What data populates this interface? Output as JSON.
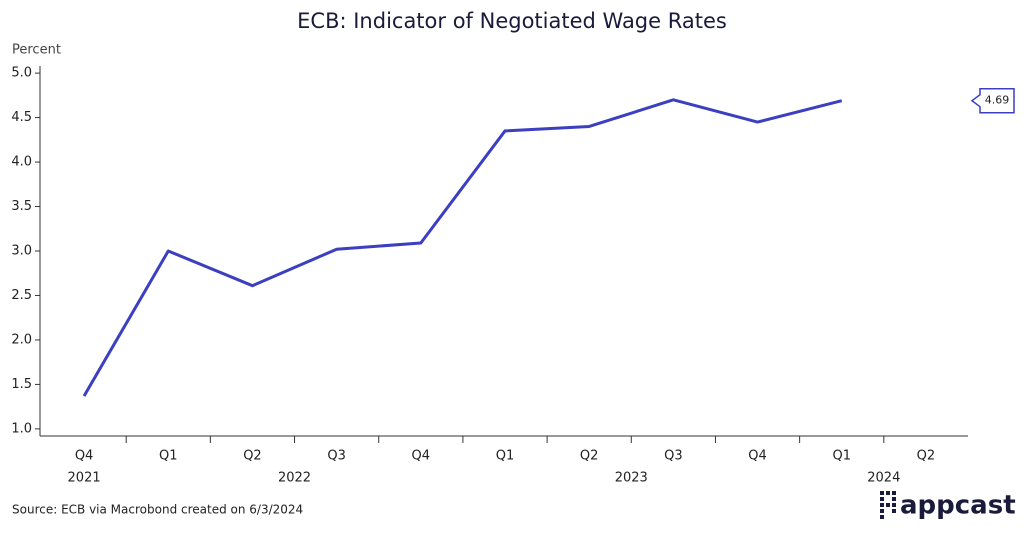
{
  "chart_data": {
    "type": "line",
    "title": "ECB: Indicator of Negotiated Wage Rates",
    "y_label": "Percent",
    "categories": [
      "Q4",
      "Q1",
      "Q2",
      "Q3",
      "Q4",
      "Q1",
      "Q2",
      "Q3",
      "Q4",
      "Q1",
      "Q2"
    ],
    "x_groups": [
      {
        "label": "2021",
        "span": 1
      },
      {
        "label": "2022",
        "span": 4
      },
      {
        "label": "2023",
        "span": 4
      },
      {
        "label": "2024",
        "span": 2
      }
    ],
    "series": [
      {
        "name": "Indicator of Negotiated Wage Rates",
        "color": "#3b3fc0",
        "values": [
          1.37,
          3.0,
          2.61,
          3.02,
          3.09,
          4.35,
          4.4,
          4.7,
          4.45,
          4.69,
          null
        ]
      }
    ],
    "ylim": [
      0.92,
      5.08
    ],
    "yticks": [
      {
        "value": 1,
        "label": "1.0"
      },
      1.5,
      {
        "value": 2,
        "label": "2.0"
      },
      2.5,
      {
        "value": 3,
        "label": "3.0"
      },
      3.5,
      {
        "value": 4,
        "label": "4.0"
      },
      4.5,
      {
        "value": 5,
        "label": "5.0"
      }
    ],
    "source": "Source: ECB via Macrobond created on 6/3/2024",
    "logo": "appcast"
  }
}
